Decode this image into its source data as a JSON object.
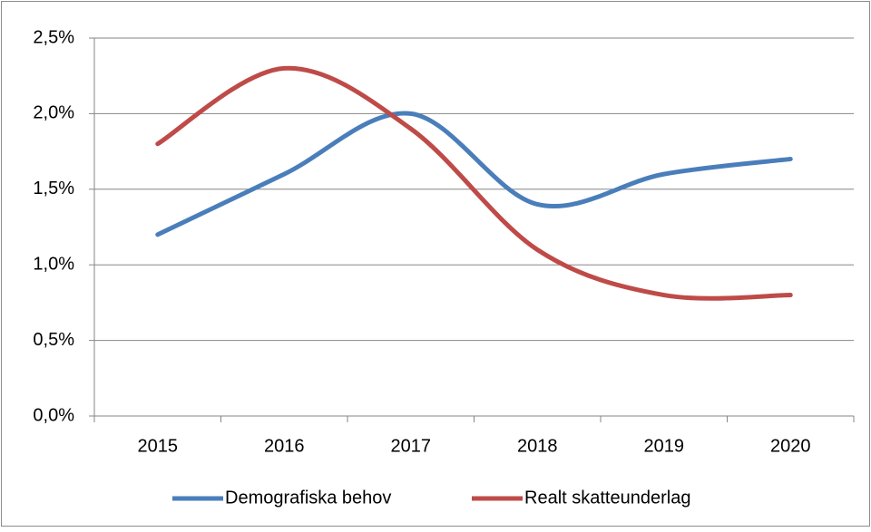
{
  "chart_data": {
    "type": "line",
    "categories": [
      "2015",
      "2016",
      "2017",
      "2018",
      "2019",
      "2020"
    ],
    "series": [
      {
        "name": "Demografiska behov",
        "color": "#4a7ebb",
        "values": [
          1.2,
          1.6,
          2.0,
          1.4,
          1.6,
          1.7
        ]
      },
      {
        "name": "Realt skatteunderlag",
        "color": "#be4b48",
        "values": [
          1.8,
          2.3,
          1.9,
          1.1,
          0.8,
          0.8
        ]
      }
    ],
    "ylim": [
      0,
      2.5
    ],
    "yticks": [
      {
        "value": 0,
        "label": "0,0%"
      },
      {
        "value": 0.5,
        "label": "0,5%"
      },
      {
        "value": 1.0,
        "label": "1,0%"
      },
      {
        "value": 1.5,
        "label": "1,5%"
      },
      {
        "value": 2.0,
        "label": "2,0%"
      },
      {
        "value": 2.5,
        "label": "2,5%"
      }
    ],
    "grid": true,
    "smooth": true,
    "legend": "bottom"
  }
}
